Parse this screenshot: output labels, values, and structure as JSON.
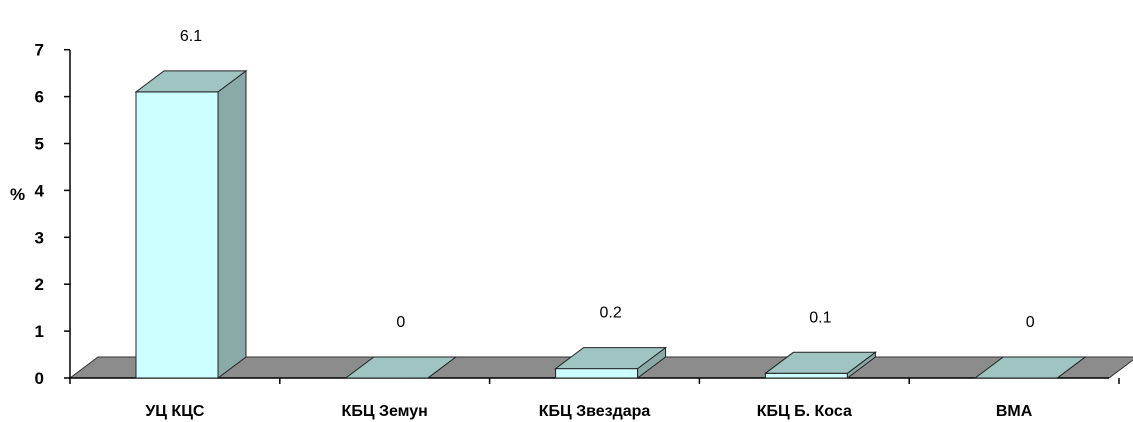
{
  "chart_data": {
    "type": "bar",
    "style": "3d-column",
    "title": "",
    "xlabel": "",
    "ylabel": "%",
    "ylim": [
      0,
      7
    ],
    "yticks": [
      "0",
      "1",
      "2",
      "3",
      "4",
      "5",
      "6",
      "7"
    ],
    "categories": [
      "УЦ КЦС",
      "КБЦ Земун",
      "КБЦ Звездара",
      "КБЦ Б. Коса",
      "ВМА"
    ],
    "values": [
      6.1,
      0,
      0.2,
      0.1,
      0
    ],
    "data_labels": [
      "6.1",
      "0",
      "0.2",
      "0.1",
      "0"
    ],
    "grid": false,
    "legend": "none",
    "colors": {
      "bar_front": "#ccffff",
      "bar_side": "#8aaaa8",
      "bar_top": "#9fc4c2",
      "floor": "#8c8c8c",
      "axis": "#000000"
    }
  }
}
